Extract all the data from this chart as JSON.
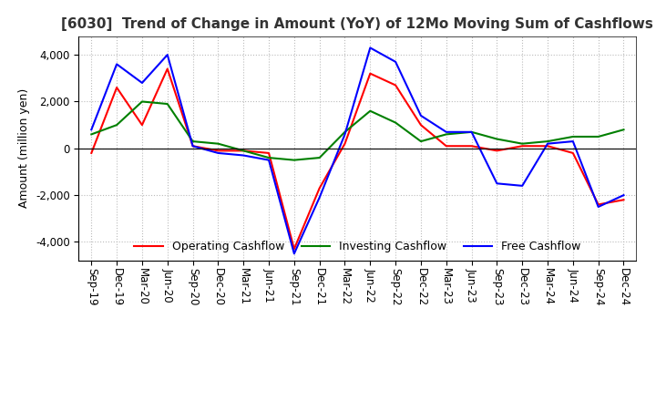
{
  "title": "[6030]  Trend of Change in Amount (YoY) of 12Mo Moving Sum of Cashflows",
  "ylabel": "Amount (million yen)",
  "x_labels": [
    "Sep-19",
    "Dec-19",
    "Mar-20",
    "Jun-20",
    "Sep-20",
    "Dec-20",
    "Mar-21",
    "Jun-21",
    "Sep-21",
    "Dec-21",
    "Mar-22",
    "Jun-22",
    "Sep-22",
    "Dec-22",
    "Mar-23",
    "Jun-23",
    "Sep-23",
    "Dec-23",
    "Mar-24",
    "Jun-24",
    "Sep-24",
    "Dec-24"
  ],
  "operating": [
    -200,
    2600,
    1000,
    3400,
    100,
    -100,
    -100,
    -200,
    -4300,
    -1700,
    200,
    3200,
    2700,
    1000,
    100,
    100,
    -100,
    100,
    100,
    -200,
    -2400,
    -2200
  ],
  "investing": [
    600,
    1000,
    2000,
    1900,
    300,
    200,
    -100,
    -400,
    -500,
    -400,
    700,
    1600,
    1100,
    300,
    600,
    700,
    400,
    200,
    300,
    500,
    500,
    800
  ],
  "free": [
    800,
    3600,
    2800,
    4000,
    100,
    -200,
    -300,
    -500,
    -4500,
    -2100,
    600,
    4300,
    3700,
    1400,
    700,
    700,
    -1500,
    -1600,
    200,
    300,
    -2500,
    -2000
  ],
  "operating_color": "#ff0000",
  "investing_color": "#008000",
  "free_color": "#0000ff",
  "ylim": [
    -4800,
    4800
  ],
  "yticks": [
    -4000,
    -2000,
    0,
    2000,
    4000
  ],
  "legend_labels": [
    "Operating Cashflow",
    "Investing Cashflow",
    "Free Cashflow"
  ],
  "background_color": "#ffffff",
  "grid_color": "#bbbbbb",
  "title_color": "#333333",
  "title_fontsize": 11,
  "axis_fontsize": 9,
  "tick_fontsize": 8.5
}
